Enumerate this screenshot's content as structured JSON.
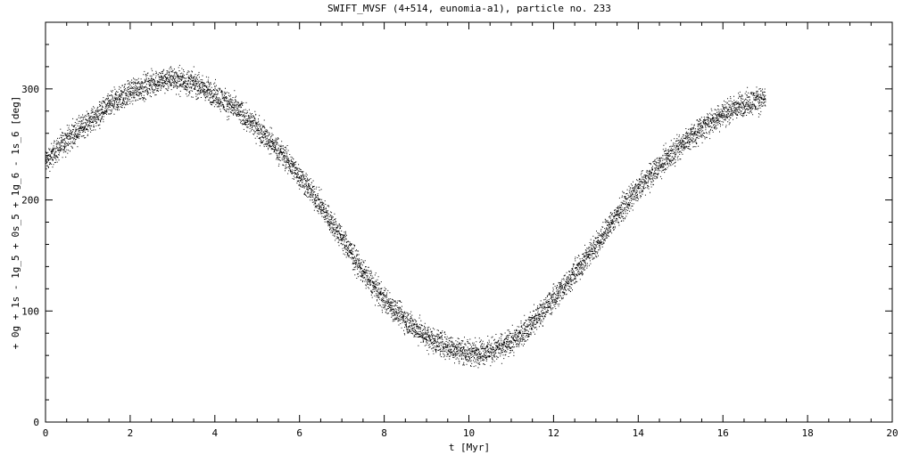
{
  "chart_data": {
    "type": "scatter",
    "title": "SWIFT_MVSF (4+514, eunomia-a1), particle no. 233",
    "xlabel": "t [Myr]",
    "ylabel": "+ 0g + 1s - 1g_5 + 0s_5 + 1g_6 - 1s_6 [deg]",
    "xlim": [
      0,
      20
    ],
    "ylim": [
      0,
      360
    ],
    "xticks": [
      0,
      2,
      4,
      6,
      8,
      10,
      12,
      14,
      16,
      18,
      20
    ],
    "xtick_labels": [
      "0",
      "2",
      "4",
      "6",
      "8",
      "10",
      "12",
      "14",
      "16",
      "18",
      "20"
    ],
    "yticks": [
      0,
      100,
      200,
      300
    ],
    "ytick_labels": [
      "0",
      "100",
      "200",
      "300"
    ],
    "x_minor_step": 0.5,
    "y_minor_step": 20,
    "grid": false,
    "marker_color": "#000000",
    "series": [
      {
        "x": [
          0.0,
          0.5,
          1.0,
          1.5,
          2.0,
          2.5,
          3.0,
          3.5,
          4.0,
          4.5,
          5.0,
          5.5,
          6.0,
          6.5,
          7.0,
          7.5,
          8.0,
          8.5,
          9.0,
          9.5,
          10.0,
          10.5,
          11.0,
          11.5,
          12.0,
          12.5,
          13.0,
          13.5,
          14.0,
          14.5,
          15.0,
          15.5,
          16.0,
          16.5,
          17.0
        ],
        "y": [
          235,
          255,
          270,
          285,
          298,
          305,
          310,
          305,
          295,
          282,
          265,
          245,
          222,
          195,
          165,
          135,
          110,
          92,
          77,
          68,
          63,
          64,
          72,
          90,
          112,
          135,
          160,
          188,
          210,
          232,
          250,
          265,
          278,
          287,
          292
        ],
        "spread": 10
      }
    ]
  }
}
